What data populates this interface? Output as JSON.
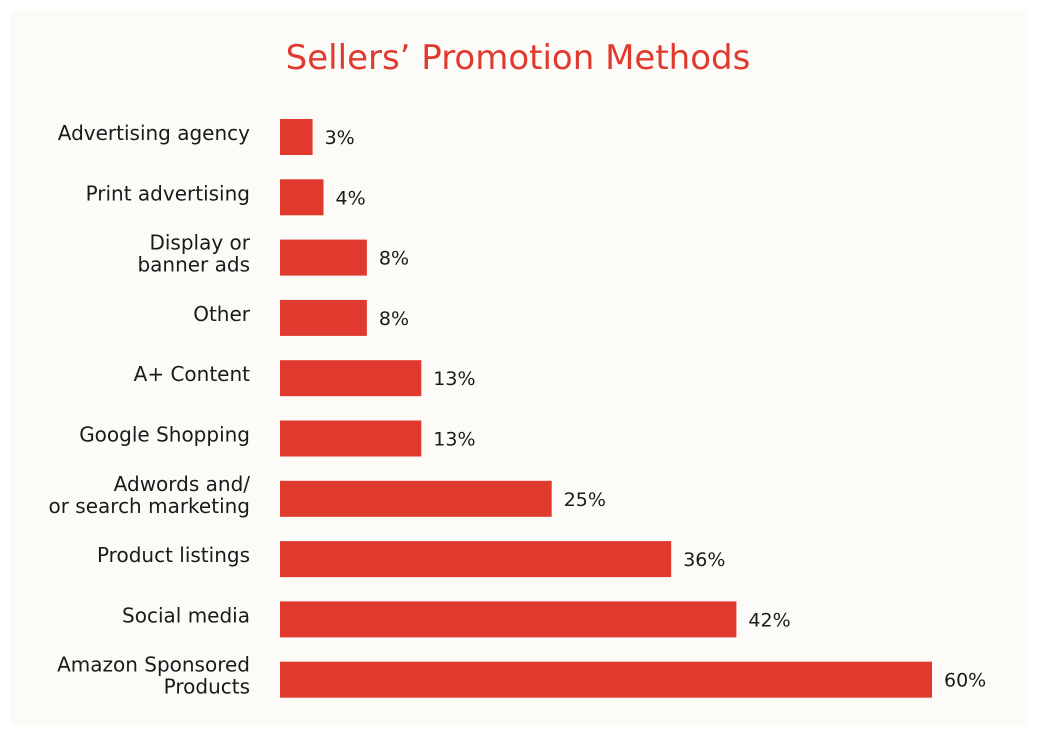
{
  "chart_data": {
    "type": "bar",
    "orientation": "horizontal",
    "title": "Sellers’ Promotion Methods",
    "categories": [
      "Advertising agency",
      "Print advertising",
      "Display or banner ads",
      "Other",
      "A+ Content",
      "Google Shopping",
      "Adwords and/ or search marketing",
      "Product listings",
      "Social media",
      "Amazon Sponsored Products"
    ],
    "category_lines": [
      [
        "Advertising agency"
      ],
      [
        "Print advertising"
      ],
      [
        "Display or",
        "banner ads"
      ],
      [
        "Other"
      ],
      [
        "A+ Content"
      ],
      [
        "Google Shopping"
      ],
      [
        "Adwords and/",
        "or search marketing"
      ],
      [
        "Product listings"
      ],
      [
        "Social media"
      ],
      [
        "Amazon Sponsored",
        "Products"
      ]
    ],
    "values": [
      3,
      4,
      8,
      8,
      13,
      13,
      25,
      36,
      42,
      60
    ],
    "value_labels": [
      "3%",
      "4%",
      "8%",
      "8%",
      "13%",
      "13%",
      "25%",
      "36%",
      "42%",
      "60%"
    ],
    "xlim": [
      0,
      60
    ],
    "grid": false,
    "legend": "none",
    "bar_color": "#e03a2e",
    "title_color": "#e03a2e"
  }
}
